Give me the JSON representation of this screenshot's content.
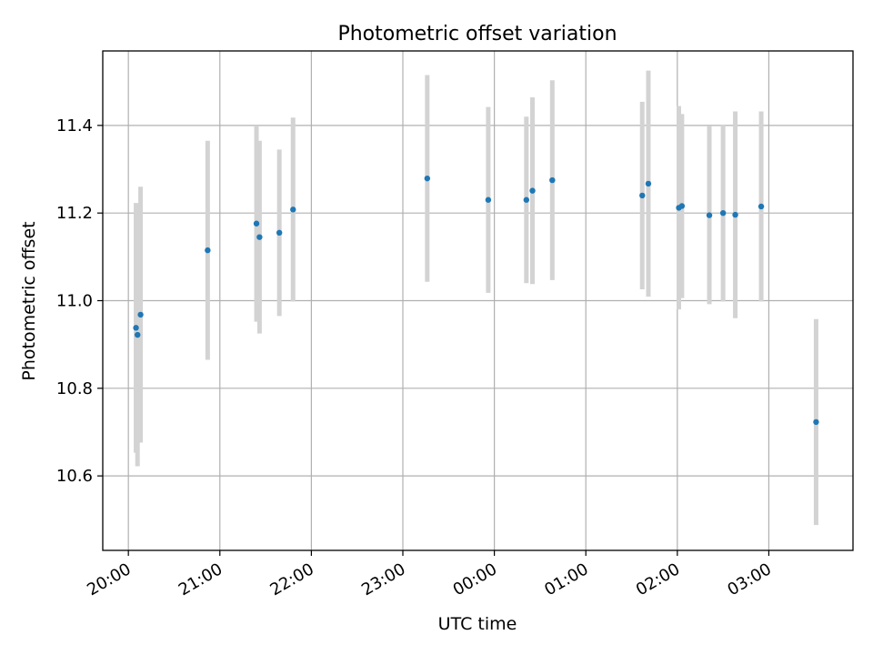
{
  "chart_data": {
    "type": "scatter",
    "title": "Photometric offset variation",
    "xlabel": "UTC time",
    "ylabel": "Photometric offset",
    "x_ticks": [
      "20:00",
      "21:00",
      "22:00",
      "23:00",
      "00:00",
      "01:00",
      "02:00",
      "03:00"
    ],
    "y_ticks": [
      "10.6",
      "10.8",
      "11.0",
      "11.2",
      "11.4"
    ],
    "y_tick_values": [
      10.6,
      10.8,
      11.0,
      11.2,
      11.4
    ],
    "xlim_hours": [
      19.72,
      27.92
    ],
    "ylim": [
      10.43,
      11.57
    ],
    "grid": true,
    "colors": {
      "point": "#1f77b4",
      "errorbar": "#d3d3d3",
      "grid": "#b0b0b0"
    },
    "points": [
      {
        "time": "20:05",
        "y": 10.938,
        "yerr": 0.285
      },
      {
        "time": "20:06",
        "y": 10.922,
        "yerr": 0.3
      },
      {
        "time": "20:08",
        "y": 10.968,
        "yerr": 0.292
      },
      {
        "time": "20:52",
        "y": 11.115,
        "yerr": 0.25
      },
      {
        "time": "21:24",
        "y": 11.176,
        "yerr": 0.224
      },
      {
        "time": "21:26",
        "y": 11.145,
        "yerr": 0.22
      },
      {
        "time": "21:39",
        "y": 11.155,
        "yerr": 0.19
      },
      {
        "time": "21:48",
        "y": 11.208,
        "yerr": 0.21
      },
      {
        "time": "23:16",
        "y": 11.279,
        "yerr": 0.236
      },
      {
        "time": "23:56",
        "y": 11.23,
        "yerr": 0.212
      },
      {
        "time": "00:21",
        "y": 11.23,
        "yerr": 0.19
      },
      {
        "time": "00:25",
        "y": 11.251,
        "yerr": 0.213
      },
      {
        "time": "00:38",
        "y": 11.275,
        "yerr": 0.228
      },
      {
        "time": "01:37",
        "y": 11.24,
        "yerr": 0.214
      },
      {
        "time": "01:41",
        "y": 11.267,
        "yerr": 0.258
      },
      {
        "time": "02:01",
        "y": 11.212,
        "yerr": 0.232
      },
      {
        "time": "02:03",
        "y": 11.216,
        "yerr": 0.21
      },
      {
        "time": "02:21",
        "y": 11.195,
        "yerr": 0.203
      },
      {
        "time": "02:30",
        "y": 11.2,
        "yerr": 0.202
      },
      {
        "time": "02:38",
        "y": 11.196,
        "yerr": 0.236
      },
      {
        "time": "02:55",
        "y": 11.215,
        "yerr": 0.217
      },
      {
        "time": "03:31",
        "y": 10.723,
        "yerr": 0.235
      }
    ]
  }
}
